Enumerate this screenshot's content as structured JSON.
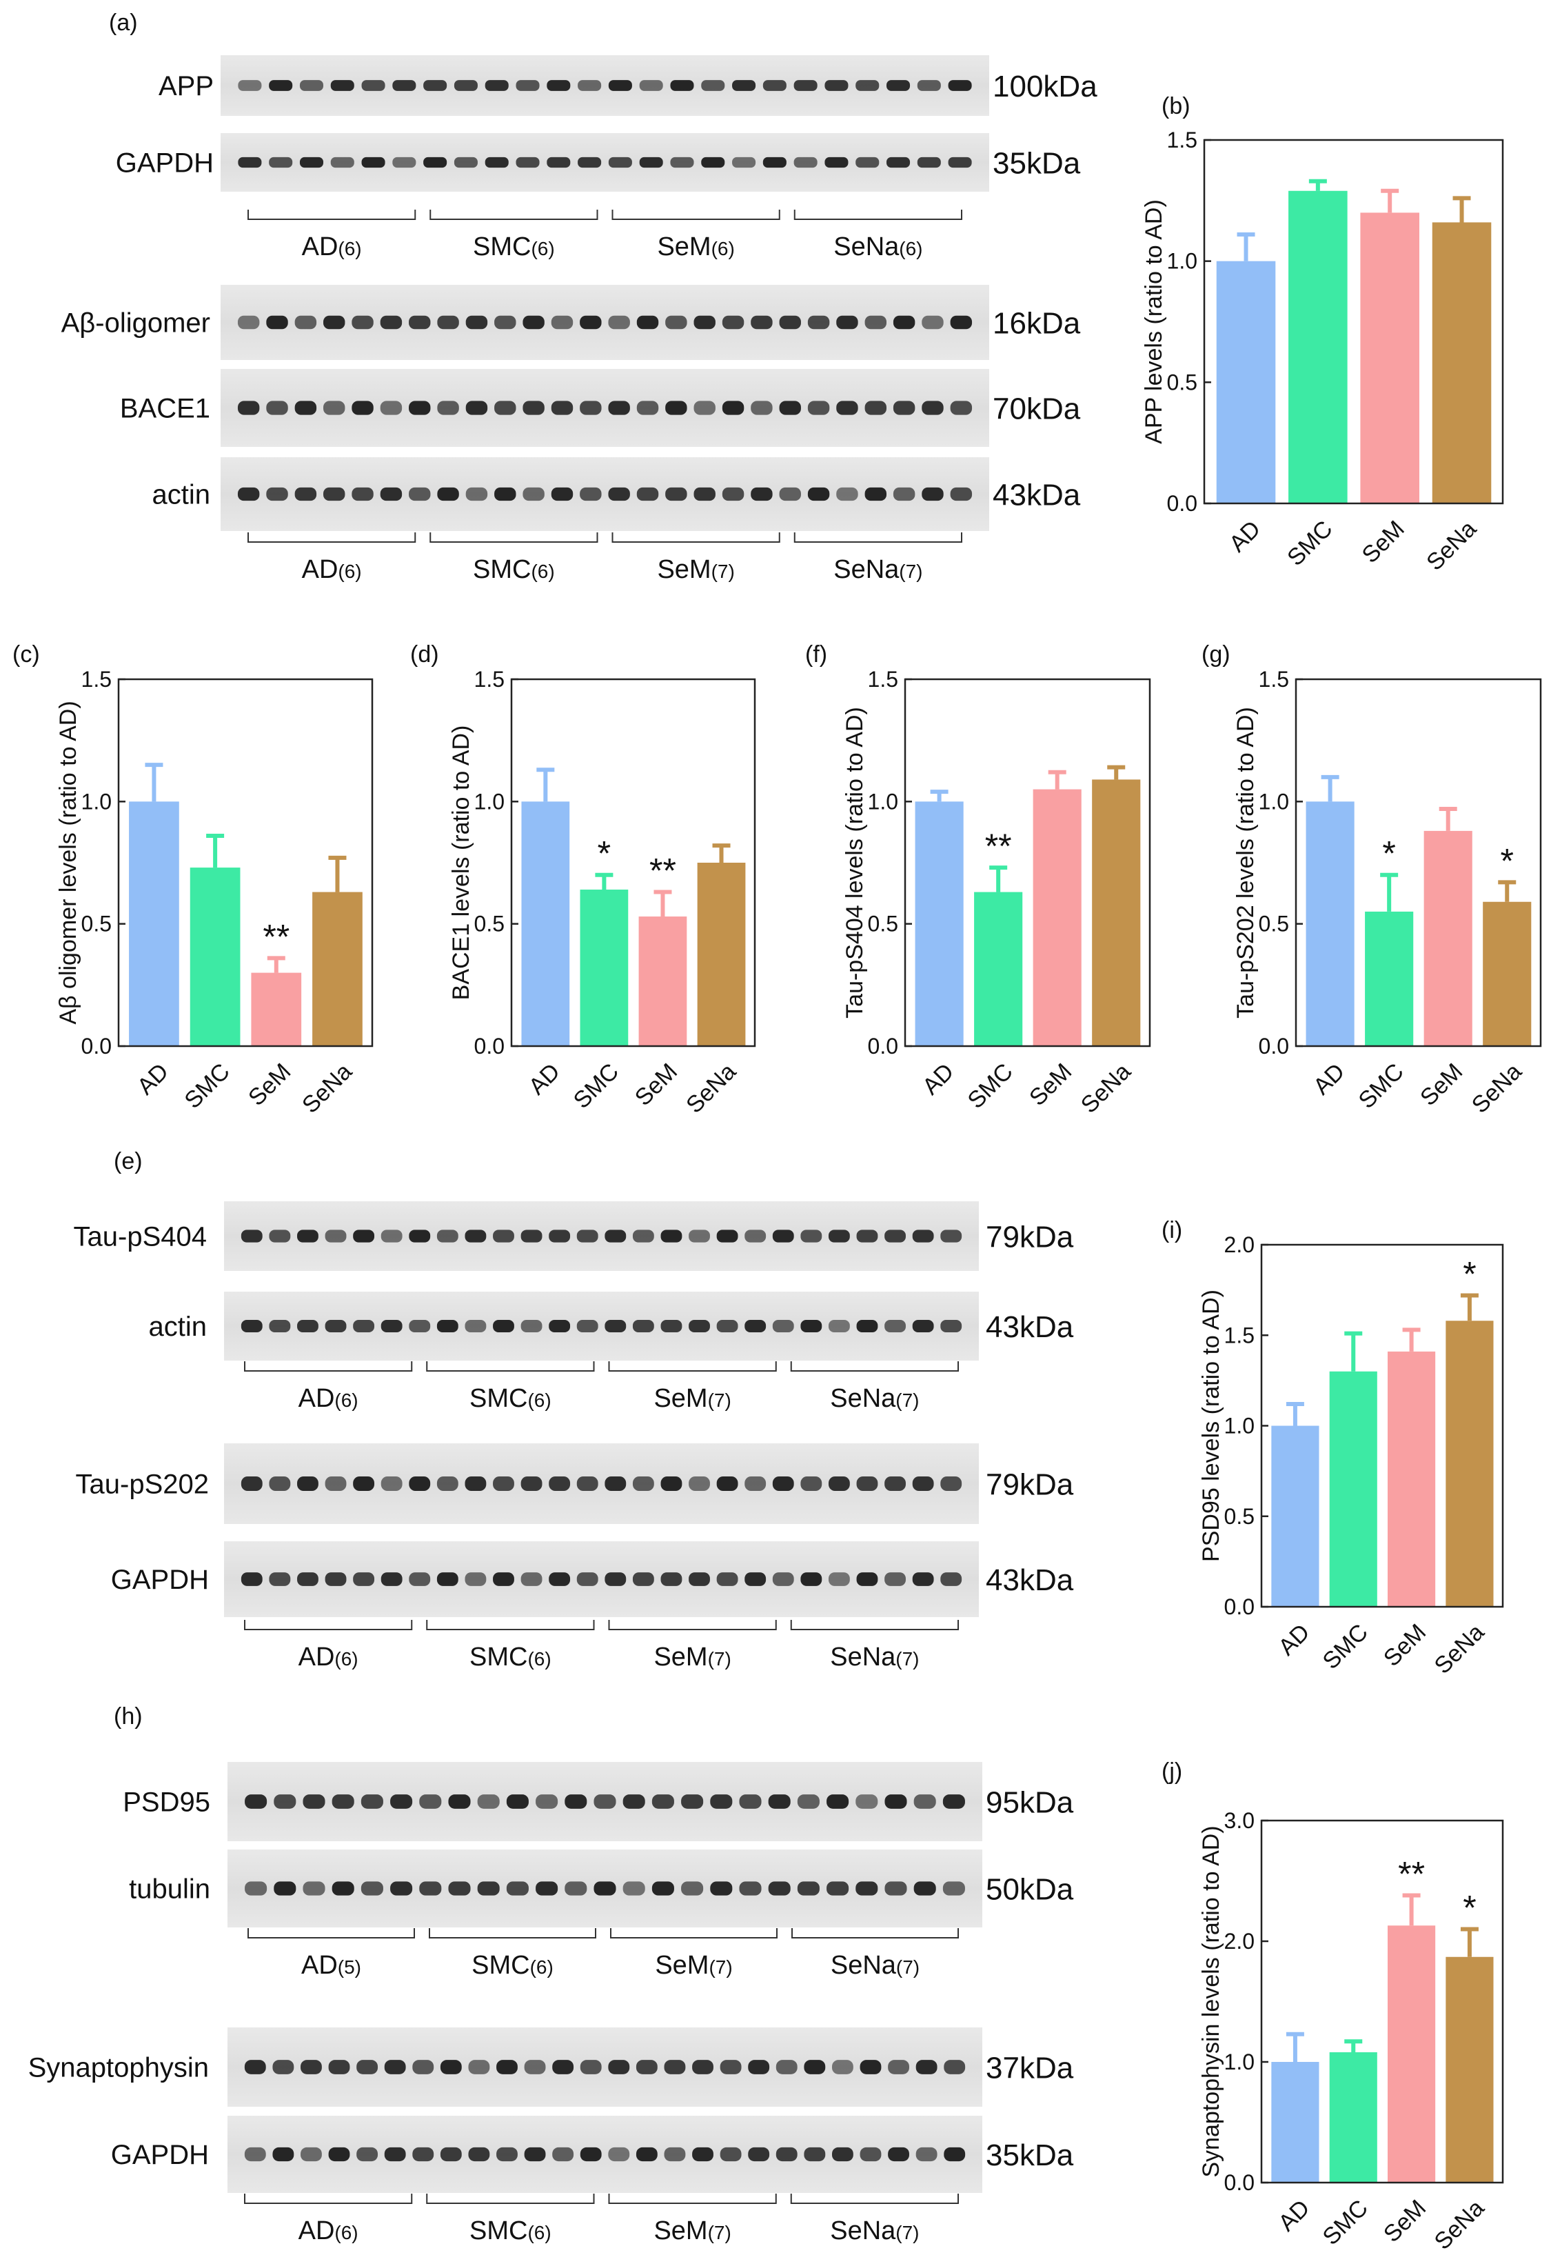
{
  "colors": {
    "AD": "#92BEF7",
    "SMC": "#3DEAA4",
    "SeM": "#F9A0A2",
    "SeNa": "#C2924C",
    "error_bar": "inherit-from-bar"
  },
  "blot_panels": [
    {
      "panel_label": "(a)",
      "groups_sets": [
        {
          "bands": [
            {
              "name": "APP",
              "kda": "100kDa"
            },
            {
              "name": "GAPDH",
              "kda": "35kDa"
            }
          ],
          "groups": [
            "AD",
            "SMC",
            "SeM",
            "SeNa"
          ],
          "counts": [
            "(6)",
            "(6)",
            "(6)",
            "(6)"
          ]
        },
        {
          "bands": [
            {
              "name": "Aβ-oligomer",
              "kda": "16kDa"
            },
            {
              "name": "BACE1",
              "kda": "70kDa"
            },
            {
              "name": "actin",
              "kda": "43kDa"
            }
          ],
          "groups": [
            "AD",
            "SMC",
            "SeM",
            "SeNa"
          ],
          "counts": [
            "(6)",
            "(6)",
            "(7)",
            "(7)"
          ]
        }
      ]
    },
    {
      "panel_label": "(e)",
      "groups_sets": [
        {
          "bands": [
            {
              "name": "Tau-pS404",
              "kda": "79kDa"
            },
            {
              "name": "actin",
              "kda": "43kDa"
            }
          ],
          "groups": [
            "AD",
            "SMC",
            "SeM",
            "SeNa"
          ],
          "counts": [
            "(6)",
            "(6)",
            "(7)",
            "(7)"
          ]
        },
        {
          "bands": [
            {
              "name": "Tau-pS202",
              "kda": "79kDa"
            },
            {
              "name": "GAPDH",
              "kda": "43kDa"
            }
          ],
          "groups": [
            "AD",
            "SMC",
            "SeM",
            "SeNa"
          ],
          "counts": [
            "(6)",
            "(6)",
            "(7)",
            "(7)"
          ]
        }
      ]
    },
    {
      "panel_label": "(h)",
      "groups_sets": [
        {
          "bands": [
            {
              "name": "PSD95",
              "kda": "95kDa"
            },
            {
              "name": "tubulin",
              "kda": "50kDa"
            }
          ],
          "groups": [
            "AD",
            "SMC",
            "SeM",
            "SeNa"
          ],
          "counts": [
            "(5)",
            "(6)",
            "(7)",
            "(7)"
          ]
        },
        {
          "bands": [
            {
              "name": "Synaptophysin",
              "kda": "37kDa"
            },
            {
              "name": "GAPDH",
              "kda": "35kDa"
            }
          ],
          "groups": [
            "AD",
            "SMC",
            "SeM",
            "SeNa"
          ],
          "counts": [
            "(6)",
            "(6)",
            "(7)",
            "(7)"
          ]
        }
      ]
    }
  ],
  "chart_data": [
    {
      "panel_label": "(b)",
      "type": "bar",
      "ylabel": "APP levels (ratio to AD)",
      "categories": [
        "AD",
        "SMC",
        "SeM",
        "SeNa"
      ],
      "values": [
        1.0,
        1.29,
        1.2,
        1.16
      ],
      "errors": [
        0.11,
        0.04,
        0.09,
        0.1
      ],
      "significance": [
        "",
        "",
        "",
        ""
      ],
      "ylim": [
        0,
        1.5
      ],
      "yticks": [
        "0.0",
        "0.5",
        "1.0",
        "1.5"
      ],
      "yticks_values": [
        0,
        0.5,
        1.0,
        1.5
      ]
    },
    {
      "panel_label": "(c)",
      "type": "bar",
      "ylabel": "Aβ oligomer levels (ratio to AD)",
      "categories": [
        "AD",
        "SMC",
        "SeM",
        "SeNa"
      ],
      "values": [
        1.0,
        0.73,
        0.3,
        0.63
      ],
      "errors": [
        0.15,
        0.13,
        0.06,
        0.14
      ],
      "significance": [
        "",
        "",
        "**",
        ""
      ],
      "ylim": [
        0,
        1.5
      ],
      "yticks": [
        "0.0",
        "0.5",
        "1.0",
        "1.5"
      ],
      "yticks_values": [
        0,
        0.5,
        1.0,
        1.5
      ]
    },
    {
      "panel_label": "(d)",
      "type": "bar",
      "ylabel": "BACE1 levels (ratio to AD)",
      "categories": [
        "AD",
        "SMC",
        "SeM",
        "SeNa"
      ],
      "values": [
        1.0,
        0.64,
        0.53,
        0.75
      ],
      "errors": [
        0.13,
        0.06,
        0.1,
        0.07
      ],
      "significance": [
        "",
        "*",
        "**",
        ""
      ],
      "ylim": [
        0,
        1.5
      ],
      "yticks": [
        "0.0",
        "0.5",
        "1.0",
        "1.5"
      ],
      "yticks_values": [
        0,
        0.5,
        1.0,
        1.5
      ]
    },
    {
      "panel_label": "(f)",
      "type": "bar",
      "ylabel": "Tau-pS404 levels (ratio to AD)",
      "categories": [
        "AD",
        "SMC",
        "SeM",
        "SeNa"
      ],
      "values": [
        1.0,
        0.63,
        1.05,
        1.09
      ],
      "errors": [
        0.04,
        0.1,
        0.07,
        0.05
      ],
      "significance": [
        "",
        "**",
        "",
        ""
      ],
      "ylim": [
        0,
        1.5
      ],
      "yticks": [
        "0.0",
        "0.5",
        "1.0",
        "1.5"
      ],
      "yticks_values": [
        0,
        0.5,
        1.0,
        1.5
      ]
    },
    {
      "panel_label": "(g)",
      "type": "bar",
      "ylabel": "Tau-pS202 levels (ratio to AD)",
      "categories": [
        "AD",
        "SMC",
        "SeM",
        "SeNa"
      ],
      "values": [
        1.0,
        0.55,
        0.88,
        0.59
      ],
      "errors": [
        0.1,
        0.15,
        0.09,
        0.08
      ],
      "significance": [
        "",
        "*",
        "",
        "*"
      ],
      "ylim": [
        0,
        1.5
      ],
      "yticks": [
        "0.0",
        "0.5",
        "1.0",
        "1.5"
      ],
      "yticks_values": [
        0,
        0.5,
        1.0,
        1.5
      ]
    },
    {
      "panel_label": "(i)",
      "type": "bar",
      "ylabel": "PSD95 levels (ratio to AD)",
      "categories": [
        "AD",
        "SMC",
        "SeM",
        "SeNa"
      ],
      "values": [
        1.0,
        1.3,
        1.41,
        1.58
      ],
      "errors": [
        0.12,
        0.21,
        0.12,
        0.14
      ],
      "significance": [
        "",
        "",
        "",
        "*"
      ],
      "ylim": [
        0,
        2.0
      ],
      "yticks": [
        "0.0",
        "0.5",
        "1.0",
        "1.5",
        "2.0"
      ],
      "yticks_values": [
        0,
        0.5,
        1.0,
        1.5,
        2.0
      ]
    },
    {
      "panel_label": "(j)",
      "type": "bar",
      "ylabel": "Synaptophysin levels (ratio to AD)",
      "categories": [
        "AD",
        "SMC",
        "SeM",
        "SeNa"
      ],
      "values": [
        1.0,
        1.08,
        2.13,
        1.87
      ],
      "errors": [
        0.23,
        0.09,
        0.25,
        0.23
      ],
      "significance": [
        "",
        "",
        "**",
        "*"
      ],
      "ylim": [
        0,
        3.0
      ],
      "yticks": [
        "0.0",
        "1.0",
        "2.0",
        "3.0"
      ],
      "yticks_values": [
        0,
        1.0,
        2.0,
        3.0
      ]
    }
  ]
}
